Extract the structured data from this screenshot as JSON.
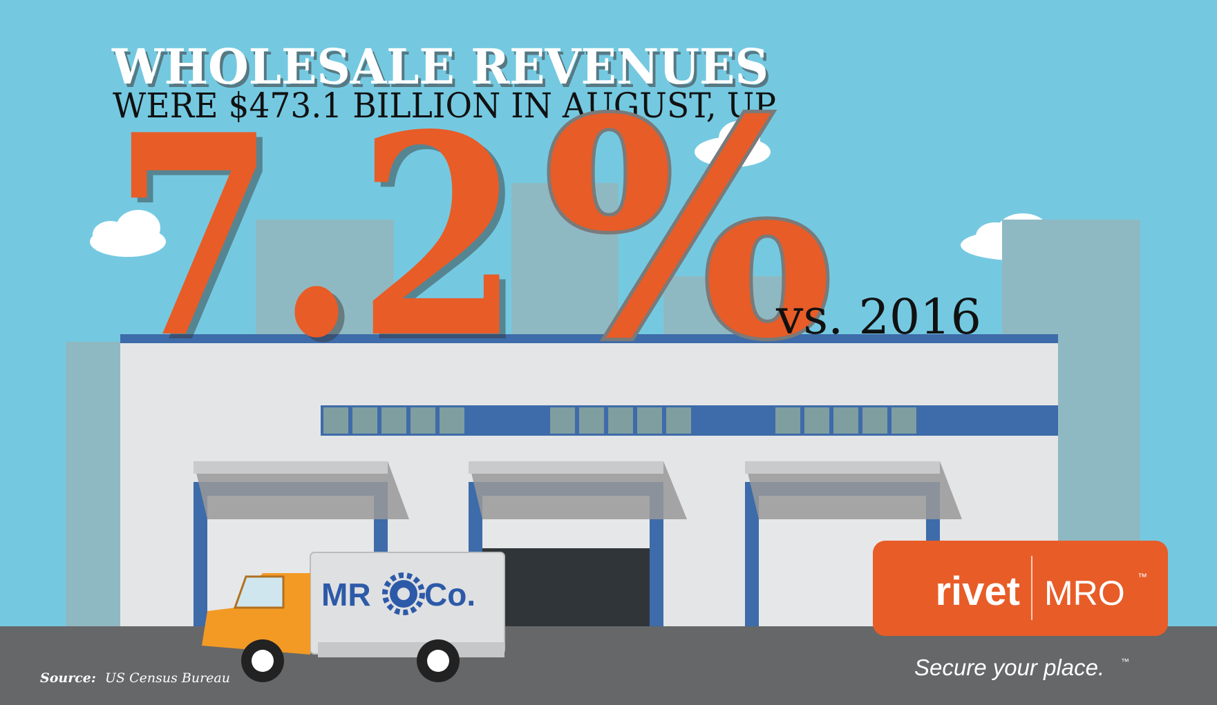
{
  "headline": {
    "title": "WHOLESALE REVENUES",
    "subtitle": "WERE $473.1 BILLION IN AUGUST, UP",
    "figure": "7.2",
    "figure_symbol": "%",
    "comparison": "vs. 2016"
  },
  "truck": {
    "brand_left": "MR",
    "brand_right": "Co."
  },
  "logo": {
    "left": "rivet",
    "right": "MRO",
    "trademark": "™",
    "tagline": "Secure your place.",
    "tagline_trademark": "™"
  },
  "source": {
    "label": "Source:",
    "text": "US Census Bureau"
  }
}
